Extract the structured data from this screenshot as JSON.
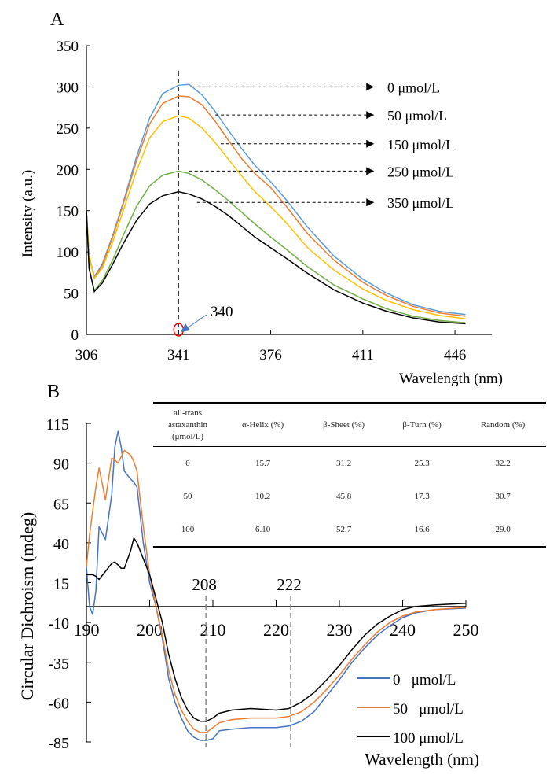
{
  "chart_data": [
    {
      "panel": "A",
      "type": "line",
      "xlabel": "Wavelength (nm)",
      "ylabel": "Intensity (a.u.)",
      "xlim": [
        306,
        460
      ],
      "ylim": [
        0,
        350
      ],
      "xticks": [
        306,
        341,
        376,
        411,
        446
      ],
      "yticks": [
        0,
        50,
        100,
        150,
        200,
        250,
        300,
        350
      ],
      "grid": false,
      "x": [
        306,
        307,
        309,
        312,
        316,
        320,
        325,
        330,
        335,
        341,
        345,
        350,
        355,
        360,
        365,
        370,
        376,
        382,
        390,
        400,
        411,
        420,
        430,
        440,
        450
      ],
      "series": [
        {
          "name": "0 μmol/L",
          "color": "#5b9bd5",
          "values": [
            150,
            95,
            70,
            85,
            120,
            160,
            215,
            262,
            292,
            302,
            303,
            290,
            270,
            247,
            225,
            205,
            185,
            163,
            130,
            95,
            67,
            50,
            36,
            28,
            24
          ]
        },
        {
          "name": "50 μmol/L",
          "color": "#ed7d31",
          "values": [
            150,
            95,
            68,
            83,
            118,
            158,
            210,
            255,
            280,
            289,
            288,
            278,
            258,
            235,
            213,
            195,
            178,
            155,
            122,
            90,
            63,
            47,
            34,
            26,
            22
          ]
        },
        {
          "name": "150 μmol/L",
          "color": "#ffc000",
          "values": [
            150,
            95,
            68,
            80,
            112,
            150,
            198,
            238,
            258,
            265,
            262,
            250,
            232,
            212,
            192,
            173,
            155,
            135,
            105,
            78,
            55,
            41,
            30,
            23,
            19
          ]
        },
        {
          "name": "250 μmol/L",
          "color": "#70ad47",
          "values": [
            150,
            80,
            53,
            65,
            90,
            120,
            155,
            180,
            193,
            198,
            195,
            187,
            175,
            162,
            148,
            134,
            118,
            103,
            82,
            60,
            43,
            31,
            22,
            17,
            14
          ]
        },
        {
          "name": "350 μmol/L",
          "color": "#000000",
          "values": [
            150,
            80,
            52,
            62,
            85,
            110,
            138,
            158,
            168,
            173,
            170,
            164,
            155,
            144,
            131,
            118,
            105,
            92,
            74,
            54,
            38,
            28,
            20,
            15,
            13
          ]
        }
      ],
      "label_arrows": [
        {
          "from_x": 346,
          "to_x": 415,
          "y": 300
        },
        {
          "from_x": 355,
          "to_x": 415,
          "y": 266
        },
        {
          "from_x": 357,
          "to_x": 415,
          "y": 231
        },
        {
          "from_x": 345,
          "to_x": 415,
          "y": 198
        },
        {
          "from_x": 348,
          "to_x": 415,
          "y": 160
        }
      ],
      "peak_line_x": 341,
      "annotation": {
        "text": "340",
        "x": 341,
        "y": 0,
        "circle_color": "#ff0000",
        "arrow_color": "#4472c4"
      }
    },
    {
      "panel": "B",
      "type": "line",
      "xlabel": "Wavelength (nm)",
      "ylabel": "Circular Dichroism (mdeg)",
      "xlim": [
        190,
        250
      ],
      "ylim": [
        -85,
        115
      ],
      "xticks": [
        190,
        200,
        210,
        220,
        230,
        240,
        250
      ],
      "yticks": [
        115,
        90,
        65,
        40,
        15,
        -10,
        -35,
        -60,
        -85
      ],
      "grid": false,
      "legend": "bottom-right",
      "x": [
        190,
        190.5,
        191,
        191.5,
        192,
        193,
        194,
        194.5,
        195,
        195.5,
        196,
        197,
        197.5,
        198,
        199,
        200,
        201,
        202,
        203,
        204,
        205,
        206,
        207,
        208,
        209,
        210,
        211,
        213,
        216,
        220,
        222,
        224,
        226,
        228,
        230,
        232,
        234,
        236,
        238,
        240,
        242,
        245,
        250
      ],
      "series": [
        {
          "name": "0   μmol/L",
          "color": "#4472c4",
          "values": [
            25,
            0,
            -5,
            10,
            50,
            42,
            70,
            100,
            110,
            100,
            85,
            80,
            78,
            75,
            40,
            15,
            0,
            -20,
            -45,
            -60,
            -70,
            -78,
            -82,
            -84,
            -84,
            -83,
            -78,
            -77,
            -76,
            -76,
            -75,
            -72,
            -66,
            -56,
            -46,
            -35,
            -26,
            -18,
            -12,
            -7,
            -4,
            -2,
            -1
          ]
        },
        {
          "name": "50   μmol/L",
          "color": "#ed7d31",
          "values": [
            25,
            45,
            60,
            75,
            87,
            67,
            93,
            92,
            90,
            94,
            98,
            95,
            91,
            85,
            50,
            20,
            0,
            -18,
            -40,
            -55,
            -65,
            -72,
            -77,
            -79,
            -79,
            -76,
            -73,
            -71,
            -70,
            -70,
            -69,
            -66,
            -60,
            -52,
            -43,
            -33,
            -24,
            -16,
            -10,
            -6,
            -3.5,
            -2,
            -0.5
          ]
        },
        {
          "name": "100 μmol/L",
          "color": "#000000",
          "values": [
            20,
            20,
            20,
            19,
            17,
            22,
            27,
            28,
            26,
            24,
            24,
            35,
            43,
            40,
            30,
            20,
            5,
            -10,
            -30,
            -45,
            -57,
            -65,
            -70,
            -72,
            -72,
            -70,
            -67,
            -65,
            -64,
            -65,
            -64,
            -60,
            -54,
            -46,
            -37,
            -27,
            -18,
            -11,
            -6,
            -2,
            0,
            1,
            2
          ]
        }
      ],
      "reference_lines": [
        {
          "label": "208",
          "x": 208.9
        },
        {
          "label": "222",
          "x": 222.3
        }
      ]
    }
  ],
  "panel_labels": [
    "A",
    "B"
  ],
  "table": {
    "headers": [
      "all-trans astaxanthin (μmol/L)",
      "α-Helix (%)",
      "β-Sheet (%)",
      "β-Turn (%)",
      "Random (%)"
    ],
    "rows": [
      [
        "0",
        "15.7",
        "31.2",
        "25.3",
        "32.2"
      ],
      [
        "50",
        "10.2",
        "45.8",
        "17.3",
        "30.7"
      ],
      [
        "100",
        "6.10",
        "52.7",
        "16.6",
        "29.0"
      ]
    ]
  }
}
